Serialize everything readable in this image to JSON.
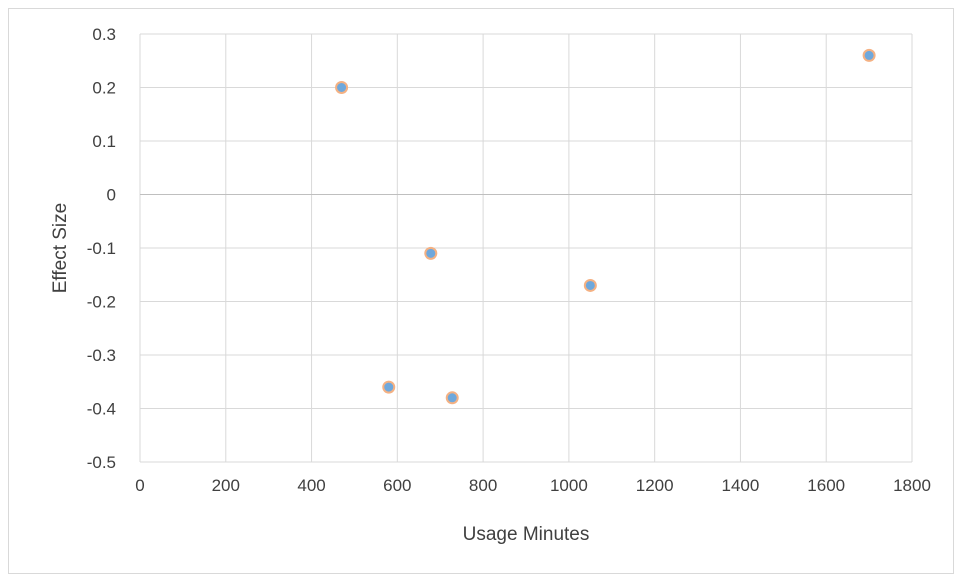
{
  "chart_data": {
    "type": "scatter",
    "title": "",
    "xlabel": "Usage Minutes",
    "ylabel": "Effect Size",
    "xlim": [
      0,
      1800
    ],
    "ylim": [
      -0.5,
      0.3
    ],
    "x_ticks": [
      0,
      200,
      400,
      600,
      800,
      1000,
      1200,
      1400,
      1600,
      1800
    ],
    "y_ticks": [
      0.3,
      0.2,
      0.1,
      0,
      -0.1,
      -0.2,
      -0.3,
      -0.4,
      -0.5
    ],
    "grid": true,
    "legend": "none",
    "series": [
      {
        "points": [
          {
            "x": 470,
            "y": 0.2
          },
          {
            "x": 580,
            "y": -0.36
          },
          {
            "x": 678,
            "y": -0.11
          },
          {
            "x": 728,
            "y": -0.38
          },
          {
            "x": 1050,
            "y": -0.17
          },
          {
            "x": 1700,
            "y": 0.26
          }
        ],
        "marker_fill": "#6fa8dc",
        "marker_edge": "#f4b183"
      }
    ],
    "colors": {
      "grid": "#d9d9d9",
      "text": "#404040",
      "zero_line": "#bfbfbf"
    }
  }
}
